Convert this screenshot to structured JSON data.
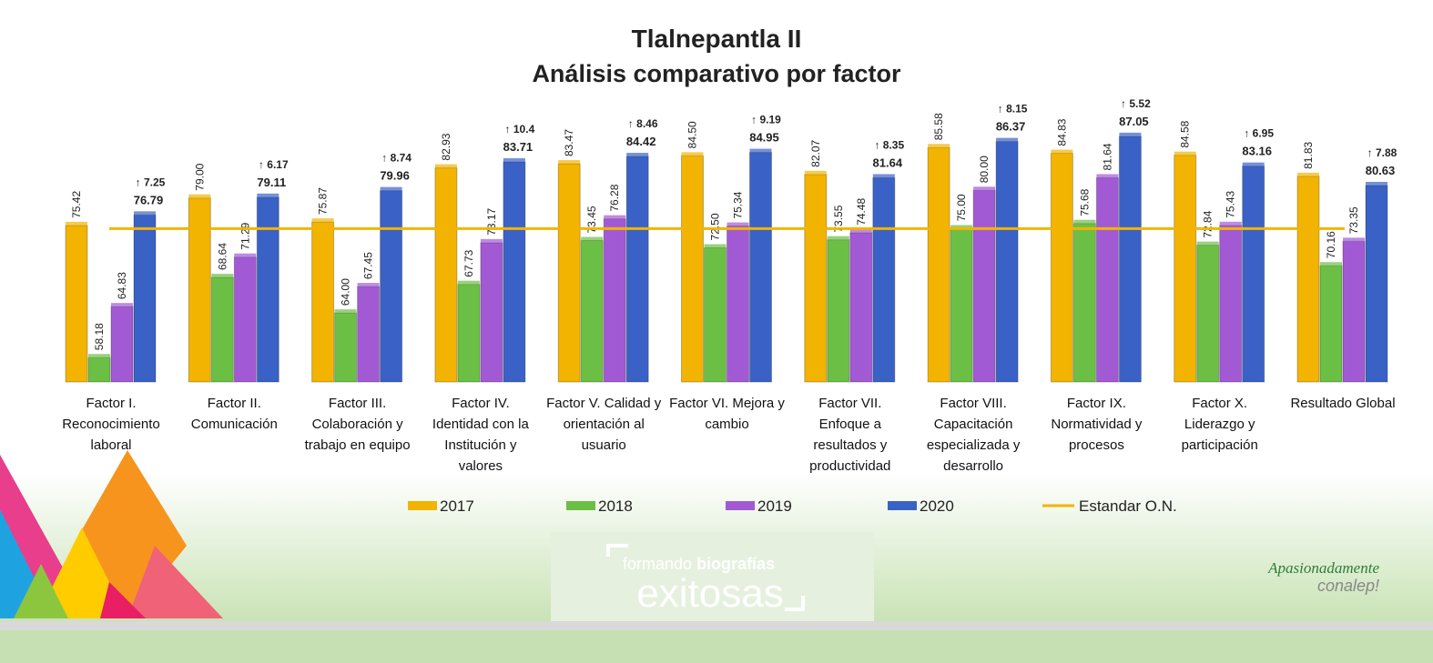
{
  "chart_data": {
    "type": "bar",
    "title": "Tlalnepantla II",
    "subtitle": "Análisis comparativo por factor",
    "categories": [
      "Factor I. Reconocimiento laboral",
      "Factor II. Comunicación",
      "Factor III. Colaboración y trabajo en equipo",
      "Factor IV. Identidad con la Institución y valores",
      "Factor V. Calidad y orientación al usuario",
      "Factor VI. Mejora y cambio",
      "Factor VII. Enfoque a resultados y productividad",
      "Factor VIII. Capacitación especializada y desarrollo",
      "Factor IX. Normatividad y procesos",
      "Factor X. Liderazgo y participación",
      "Resultado Global"
    ],
    "series": [
      {
        "name": "2017",
        "color": "#f2b400",
        "values": [
          75.42,
          79.0,
          75.87,
          82.93,
          83.47,
          84.5,
          82.07,
          85.58,
          84.83,
          84.58,
          81.83
        ],
        "value_labels": [
          "75.42",
          "79.00",
          "75.87",
          "82.93",
          "83.47",
          "84.50",
          "82.07",
          "85.58",
          "84.83",
          "84.58",
          "81.83"
        ]
      },
      {
        "name": "2018",
        "color": "#6cbf45",
        "values": [
          58.18,
          68.64,
          64.0,
          67.73,
          73.45,
          72.5,
          73.55,
          75.0,
          75.68,
          72.84,
          70.16
        ],
        "value_labels": [
          "58.18",
          "68.64",
          "64.00",
          "67.73",
          "73.45",
          "72.50",
          "73.55",
          "75.00",
          "75.68",
          "72.84",
          "70.16"
        ]
      },
      {
        "name": "2019",
        "color": "#a25ad4",
        "values": [
          64.83,
          71.29,
          67.45,
          73.17,
          76.28,
          75.34,
          74.48,
          80.0,
          81.64,
          75.43,
          73.35
        ],
        "value_labels": [
          "64.83",
          "71.29",
          "67.45",
          "73.17",
          "76.28",
          "75.34",
          "74.48",
          "80.00",
          "81.64",
          "75.43",
          "73.35"
        ]
      },
      {
        "name": "2020",
        "color": "#3a62c6",
        "values": [
          76.79,
          79.11,
          79.96,
          83.71,
          84.42,
          84.95,
          81.64,
          86.37,
          87.05,
          83.16,
          80.63
        ],
        "value_labels": [
          "76.79",
          "79.11",
          "79.96",
          "83.71",
          "84.42",
          "84.95",
          "81.64",
          "86.37",
          "87.05",
          "83.16",
          "80.63"
        ]
      }
    ],
    "annotations": [
      "↑ 7.25",
      "↑ 6.17",
      "↑ 8.74",
      "↑ 10.4",
      "↑ 8.46",
      "↑ 9.19",
      "↑ 8.35",
      "↑ 8.15",
      "↑ 5.52",
      "↑ 6.95",
      "↑ 7.88"
    ],
    "reference_line": {
      "name": "Estandar O.N.",
      "value": 75,
      "color": "#f2b400"
    },
    "ylim": [
      55,
      90
    ]
  },
  "branding": {
    "center_logo": [
      "formando",
      "biografías",
      "exitosas"
    ],
    "right_logo": [
      "Apasionadamente",
      "conalep!"
    ]
  }
}
